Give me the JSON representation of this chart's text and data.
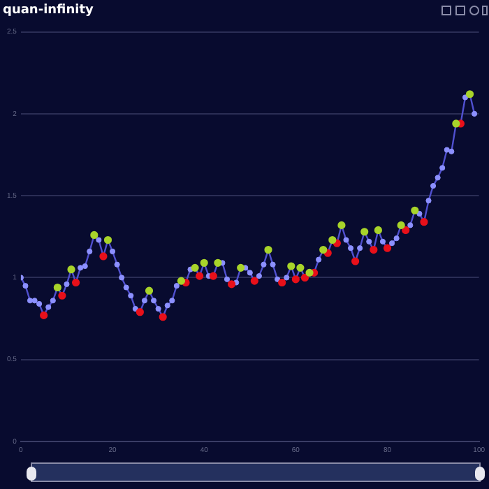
{
  "chart_data": {
    "type": "line",
    "title": "quan-infinity",
    "xlim": [
      0,
      100
    ],
    "xticks": [
      0,
      20,
      40,
      60,
      80,
      100
    ],
    "ylim": [
      0,
      2.5
    ],
    "yticks": [
      0,
      0.5,
      1,
      1.5,
      2,
      2.5
    ],
    "grid": "y",
    "legend": false,
    "marker": "circle",
    "series": [
      {
        "color": "#5050d0",
        "x": [
          0,
          1,
          2,
          3,
          4,
          5,
          6,
          7,
          8,
          9,
          10,
          11,
          12,
          13,
          14,
          15,
          16,
          17,
          18,
          19,
          20,
          21,
          22,
          23,
          24,
          25,
          26,
          27,
          28,
          29,
          30,
          31,
          32,
          33,
          34,
          35,
          36,
          37,
          38,
          39,
          40,
          41,
          42,
          43,
          44,
          45,
          46,
          47,
          48,
          49,
          50,
          51,
          52,
          53,
          54,
          55,
          56,
          57,
          58,
          59,
          60,
          61,
          62,
          63,
          64,
          65,
          66,
          67,
          68,
          69,
          70,
          71,
          72,
          73,
          74,
          75,
          76,
          77,
          78,
          79,
          80,
          81,
          82,
          83,
          84,
          85,
          86,
          87,
          88,
          89,
          90,
          91,
          92,
          93,
          94,
          95,
          96,
          97,
          98,
          99
        ],
        "values": [
          1.0,
          0.95,
          0.86,
          0.86,
          0.84,
          0.77,
          0.82,
          0.86,
          0.94,
          0.89,
          0.96,
          1.05,
          0.97,
          1.06,
          1.07,
          1.16,
          1.26,
          1.23,
          1.13,
          1.23,
          1.16,
          1.08,
          1.0,
          0.94,
          0.89,
          0.81,
          0.79,
          0.86,
          0.92,
          0.86,
          0.81,
          0.76,
          0.83,
          0.86,
          0.95,
          0.98,
          0.97,
          1.05,
          1.06,
          1.01,
          1.09,
          1.01,
          1.01,
          1.09,
          1.09,
          0.99,
          0.96,
          0.97,
          1.06,
          1.06,
          1.03,
          0.98,
          1.01,
          1.08,
          1.17,
          1.08,
          0.99,
          0.97,
          1.0,
          1.07,
          0.99,
          1.06,
          1.0,
          1.03,
          1.03,
          1.11,
          1.17,
          1.15,
          1.23,
          1.21,
          1.32,
          1.23,
          1.18,
          1.1,
          1.18,
          1.28,
          1.22,
          1.17,
          1.29,
          1.22,
          1.18,
          1.21,
          1.24,
          1.32,
          1.29,
          1.32,
          1.41,
          1.39,
          1.34,
          1.47,
          1.56,
          1.61,
          1.67,
          1.78,
          1.77,
          1.94,
          1.94,
          2.1,
          2.12,
          2.0
        ]
      },
      {
        "type": "scatter",
        "color": "#a8d42a",
        "x": [
          8,
          11,
          16,
          19,
          28,
          35,
          38,
          40,
          43,
          48,
          54,
          59,
          61,
          63,
          66,
          68,
          70,
          75,
          78,
          83,
          86,
          95,
          98
        ],
        "values": [
          0.94,
          1.05,
          1.26,
          1.23,
          0.92,
          0.98,
          1.06,
          1.09,
          1.09,
          1.06,
          1.17,
          1.07,
          1.06,
          1.03,
          1.17,
          1.23,
          1.32,
          1.28,
          1.29,
          1.32,
          1.41,
          1.94,
          2.12
        ]
      },
      {
        "type": "scatter",
        "color": "#e8101a",
        "x": [
          5,
          9,
          12,
          18,
          26,
          31,
          36,
          39,
          42,
          46,
          51,
          57,
          60,
          62,
          64,
          67,
          69,
          73,
          77,
          80,
          84,
          88,
          96
        ],
        "values": [
          0.77,
          0.89,
          0.97,
          1.13,
          0.79,
          0.76,
          0.97,
          1.01,
          1.01,
          0.96,
          0.98,
          0.97,
          0.99,
          1.0,
          1.03,
          1.15,
          1.21,
          1.1,
          1.17,
          1.18,
          1.29,
          1.34,
          1.94
        ]
      }
    ]
  }
}
